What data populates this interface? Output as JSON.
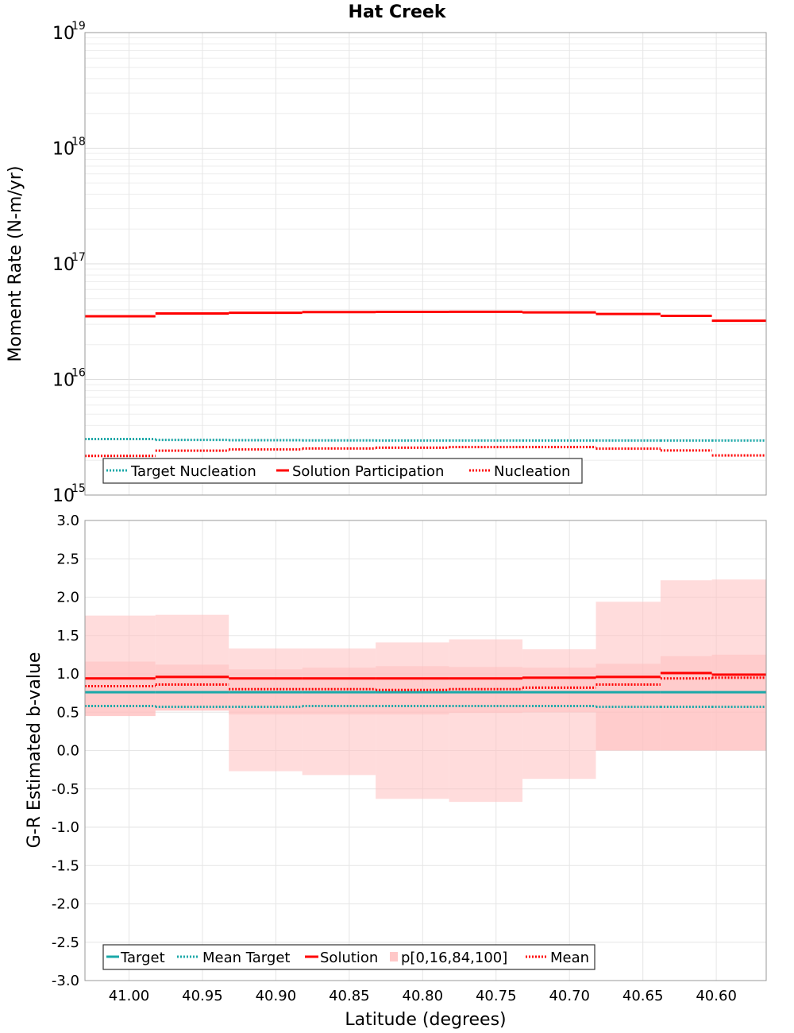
{
  "chart_data": [
    {
      "type": "line",
      "title": "Hat Creek",
      "xlabel": "Latitude (degrees)",
      "ylabel": "Moment Rate (N-m/yr)",
      "yscale": "log",
      "xlim": [
        41.03,
        40.566
      ],
      "ylim_exponents": [
        15,
        19
      ],
      "ytick_base": "10",
      "ytick_exponents": [
        "15",
        "16",
        "17",
        "18",
        "19"
      ],
      "xticks": [
        "41.00",
        "40.95",
        "40.90",
        "40.85",
        "40.80",
        "40.75",
        "40.70",
        "40.65",
        "40.60"
      ],
      "xtick_values": [
        41.0,
        40.95,
        40.9,
        40.85,
        40.8,
        40.75,
        40.7,
        40.65,
        40.6
      ],
      "bin_edges": [
        41.03,
        40.982,
        40.932,
        40.882,
        40.832,
        40.782,
        40.732,
        40.682,
        40.638,
        40.603,
        40.566
      ],
      "legend_position": "bottom-left",
      "series": [
        {
          "name": "Target Nucleation",
          "style": "dotted",
          "color": "#1aa8a8",
          "values": [
            3050000000000000.0,
            3000000000000000.0,
            2980000000000000.0,
            2970000000000000.0,
            2960000000000000.0,
            2960000000000000.0,
            2960000000000000.0,
            2960000000000000.0,
            2960000000000000.0,
            2960000000000000.0
          ]
        },
        {
          "name": "Solution Participation",
          "style": "solid",
          "color": "#ff0000",
          "values": [
            3.52e+16,
            3.72e+16,
            3.77e+16,
            3.82e+16,
            3.84e+16,
            3.85e+16,
            3.8e+16,
            3.68e+16,
            3.55e+16,
            3.22e+16
          ]
        },
        {
          "name": "Nucleation",
          "style": "dotted",
          "color": "#ff0000",
          "values": [
            2180000000000000.0,
            2420000000000000.0,
            2480000000000000.0,
            2530000000000000.0,
            2570000000000000.0,
            2600000000000000.0,
            2600000000000000.0,
            2520000000000000.0,
            2430000000000000.0,
            2200000000000000.0
          ]
        }
      ]
    },
    {
      "type": "line",
      "xlabel": "Latitude (degrees)",
      "ylabel": "G-R Estimated b-value",
      "xlim": [
        41.03,
        40.566
      ],
      "ylim": [
        -3.0,
        3.0
      ],
      "yticks": [
        "-3.0",
        "-2.5",
        "-2.0",
        "-1.5",
        "-1.0",
        "-0.5",
        "0.0",
        "0.5",
        "1.0",
        "1.5",
        "2.0",
        "2.5",
        "3.0"
      ],
      "ytick_values": [
        -3.0,
        -2.5,
        -2.0,
        -1.5,
        -1.0,
        -0.5,
        0.0,
        0.5,
        1.0,
        1.5,
        2.0,
        2.5,
        3.0
      ],
      "xticks": [
        "41.00",
        "40.95",
        "40.90",
        "40.85",
        "40.80",
        "40.75",
        "40.70",
        "40.65",
        "40.60"
      ],
      "xtick_values": [
        41.0,
        40.95,
        40.9,
        40.85,
        40.8,
        40.75,
        40.7,
        40.65,
        40.6
      ],
      "bin_edges": [
        41.03,
        40.982,
        40.932,
        40.882,
        40.832,
        40.782,
        40.732,
        40.682,
        40.638,
        40.603,
        40.566
      ],
      "legend_position": "bottom-left",
      "series": [
        {
          "name": "Target",
          "style": "solid",
          "color": "#1aa8a8",
          "values": [
            0.76,
            0.76,
            0.76,
            0.76,
            0.76,
            0.76,
            0.76,
            0.76,
            0.76,
            0.76
          ]
        },
        {
          "name": "Mean Target",
          "style": "dotted",
          "color": "#1aa8a8",
          "values": [
            0.58,
            0.57,
            0.57,
            0.58,
            0.58,
            0.58,
            0.58,
            0.57,
            0.57,
            0.57
          ]
        },
        {
          "name": "Solution",
          "style": "solid",
          "color": "#ff0000",
          "values": [
            0.94,
            0.96,
            0.94,
            0.94,
            0.94,
            0.94,
            0.95,
            0.96,
            1.01,
            0.99
          ]
        },
        {
          "name": "Mean",
          "style": "dotted",
          "color": "#ff0000",
          "values": [
            0.84,
            0.86,
            0.8,
            0.8,
            0.79,
            0.8,
            0.82,
            0.86,
            0.94,
            0.95
          ]
        }
      ],
      "bands": {
        "name": "p[0,16,84,100]",
        "color": "#ffc0c0",
        "p0": [
          0.45,
          0.52,
          0.47,
          0.47,
          0.47,
          0.49,
          0.5,
          0.0,
          0.0,
          0.0
        ],
        "p100": [
          1.76,
          1.77,
          1.33,
          1.33,
          1.41,
          1.45,
          1.32,
          1.94,
          2.22,
          2.23
        ],
        "p16": [
          0.45,
          0.52,
          -0.27,
          -0.32,
          -0.63,
          -0.67,
          -0.37,
          0.0,
          0.0,
          0.0
        ],
        "p84": [
          1.16,
          1.12,
          1.06,
          1.08,
          1.1,
          1.09,
          1.08,
          1.13,
          1.23,
          1.25
        ]
      }
    }
  ]
}
